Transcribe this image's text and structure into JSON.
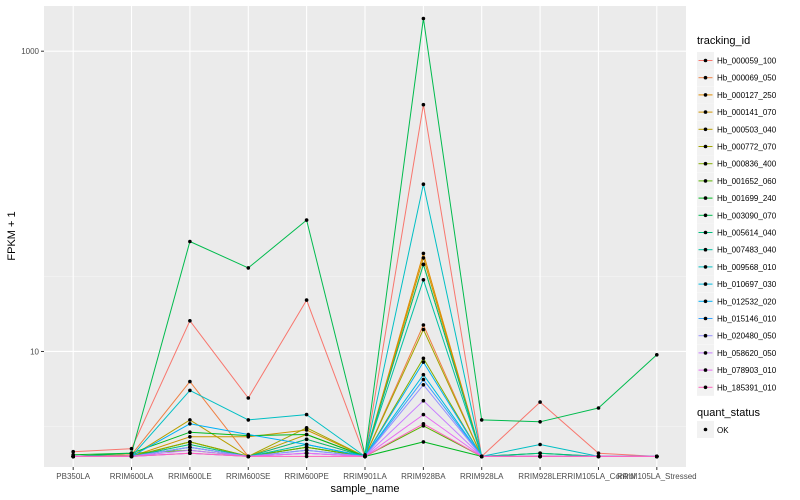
{
  "chart_data": {
    "type": "line",
    "xlabel": "sample_name",
    "ylabel": "FPKM + 1",
    "y_scale": "log10",
    "ylim": [
      1.7,
      2000
    ],
    "yticks": [
      {
        "value": 10,
        "label": "10"
      },
      {
        "value": 1000,
        "label": "1000"
      }
    ],
    "categories": [
      "PB350LA",
      "RRIM600LA",
      "RRIM600LE",
      "RRIM600SE",
      "RRIM600PE",
      "RRIM901LA",
      "RRIM928BA",
      "RRIM928LA",
      "RRIM928LE",
      "RRIM105LA_Control",
      "RRIM105LA_Stressed"
    ],
    "legend_position": "right",
    "legend_title": "tracking_id",
    "series": [
      {
        "name": "Hb_000059_100",
        "color": "#F8766D",
        "values": [
          2.15,
          2.25,
          16,
          4.9,
          22,
          2.0,
          440,
          2.0,
          4.6,
          2.1,
          2.0
        ]
      },
      {
        "name": "Hb_000069_050",
        "color": "#EE8043",
        "values": [
          2.0,
          2.05,
          6.3,
          2.0,
          2.6,
          2.0,
          15,
          2.0,
          2.0,
          2.0,
          2.0
        ]
      },
      {
        "name": "Hb_000127_250",
        "color": "#E08B00",
        "values": [
          2.0,
          2.0,
          2.5,
          2.0,
          2.3,
          2.0,
          45,
          2.0,
          2.0,
          2.0,
          2.0
        ]
      },
      {
        "name": "Hb_000141_070",
        "color": "#CF9400",
        "values": [
          2.0,
          2.0,
          2.7,
          2.7,
          3.0,
          2.0,
          42,
          2.0,
          2.0,
          2.0,
          2.0
        ]
      },
      {
        "name": "Hb_000503_040",
        "color": "#B99E00",
        "values": [
          2.0,
          2.0,
          3.5,
          2.0,
          2.8,
          2.0,
          38,
          2.0,
          2.0,
          2.0,
          2.0
        ]
      },
      {
        "name": "Hb_000772_070",
        "color": "#A3A500",
        "values": [
          2.0,
          2.0,
          2.5,
          2.0,
          3.1,
          2.0,
          14,
          2.0,
          2.0,
          2.0,
          2.0
        ]
      },
      {
        "name": "Hb_000836_400",
        "color": "#85AD00",
        "values": [
          2.0,
          2.0,
          2.5,
          2.0,
          2.3,
          2.0,
          9.0,
          2.0,
          2.0,
          2.0,
          2.0
        ]
      },
      {
        "name": "Hb_001652_060",
        "color": "#5BB300",
        "values": [
          2.0,
          2.1,
          2.2,
          2.0,
          2.3,
          2.0,
          3.2,
          2.0,
          2.0,
          2.0,
          2.0
        ]
      },
      {
        "name": "Hb_001699_240",
        "color": "#00B81F",
        "values": [
          2.05,
          2.1,
          2.9,
          2.75,
          2.8,
          2.0,
          2.5,
          2.0,
          2.1,
          2.0,
          2.0
        ]
      },
      {
        "name": "Hb_003090_070",
        "color": "#00BB4E",
        "values": [
          2.0,
          2.1,
          54,
          36,
          75,
          2.05,
          1650,
          3.5,
          3.4,
          4.2,
          9.5
        ]
      },
      {
        "name": "Hb_005614_040",
        "color": "#00BF7D",
        "values": [
          2.0,
          2.0,
          2.4,
          2.0,
          2.6,
          2.0,
          38,
          2.0,
          2.1,
          2.0,
          2.0
        ]
      },
      {
        "name": "Hb_007483_040",
        "color": "#00C1A3",
        "values": [
          2.0,
          2.0,
          2.3,
          2.0,
          2.4,
          2.0,
          30,
          2.0,
          2.0,
          2.0,
          2.0
        ]
      },
      {
        "name": "Hb_009568_010",
        "color": "#00BFC4",
        "values": [
          2.0,
          2.0,
          5.5,
          3.5,
          3.8,
          2.0,
          130,
          2.0,
          2.4,
          2.0,
          2.0
        ]
      },
      {
        "name": "Hb_010697_030",
        "color": "#00BAE0",
        "values": [
          2.0,
          2.0,
          2.3,
          2.0,
          2.2,
          2.0,
          7.0,
          2.0,
          2.0,
          2.0,
          2.0
        ]
      },
      {
        "name": "Hb_012532_020",
        "color": "#00B0F6",
        "values": [
          2.0,
          2.0,
          3.3,
          2.8,
          2.4,
          2.0,
          8.5,
          2.0,
          2.0,
          2.0,
          2.0
        ]
      },
      {
        "name": "Hb_015146_010",
        "color": "#35A2FF",
        "values": [
          2.0,
          2.0,
          2.1,
          2.0,
          2.1,
          2.0,
          6.5,
          2.0,
          2.0,
          2.0,
          2.0
        ]
      },
      {
        "name": "Hb_020480_050",
        "color": "#9590FF",
        "values": [
          2.0,
          2.0,
          2.3,
          2.0,
          2.2,
          2.0,
          6.0,
          2.0,
          2.0,
          2.0,
          2.0
        ]
      },
      {
        "name": "Hb_058620_050",
        "color": "#C77CFF",
        "values": [
          2.0,
          2.0,
          2.2,
          2.0,
          2.1,
          2.0,
          4.7,
          2.0,
          2.0,
          2.0,
          2.0
        ]
      },
      {
        "name": "Hb_078903_010",
        "color": "#E76BF3",
        "values": [
          2.0,
          2.0,
          2.1,
          2.0,
          2.1,
          2.0,
          3.8,
          2.0,
          2.0,
          2.0,
          2.0
        ]
      },
      {
        "name": "Hb_185391_010",
        "color": "#FF62BC",
        "values": [
          2.0,
          2.0,
          2.1,
          2.0,
          2.0,
          2.0,
          3.3,
          2.0,
          2.0,
          2.0,
          2.0
        ]
      }
    ],
    "shape_legend_title": "quant_status",
    "shape_legend_entries": [
      "OK"
    ]
  }
}
